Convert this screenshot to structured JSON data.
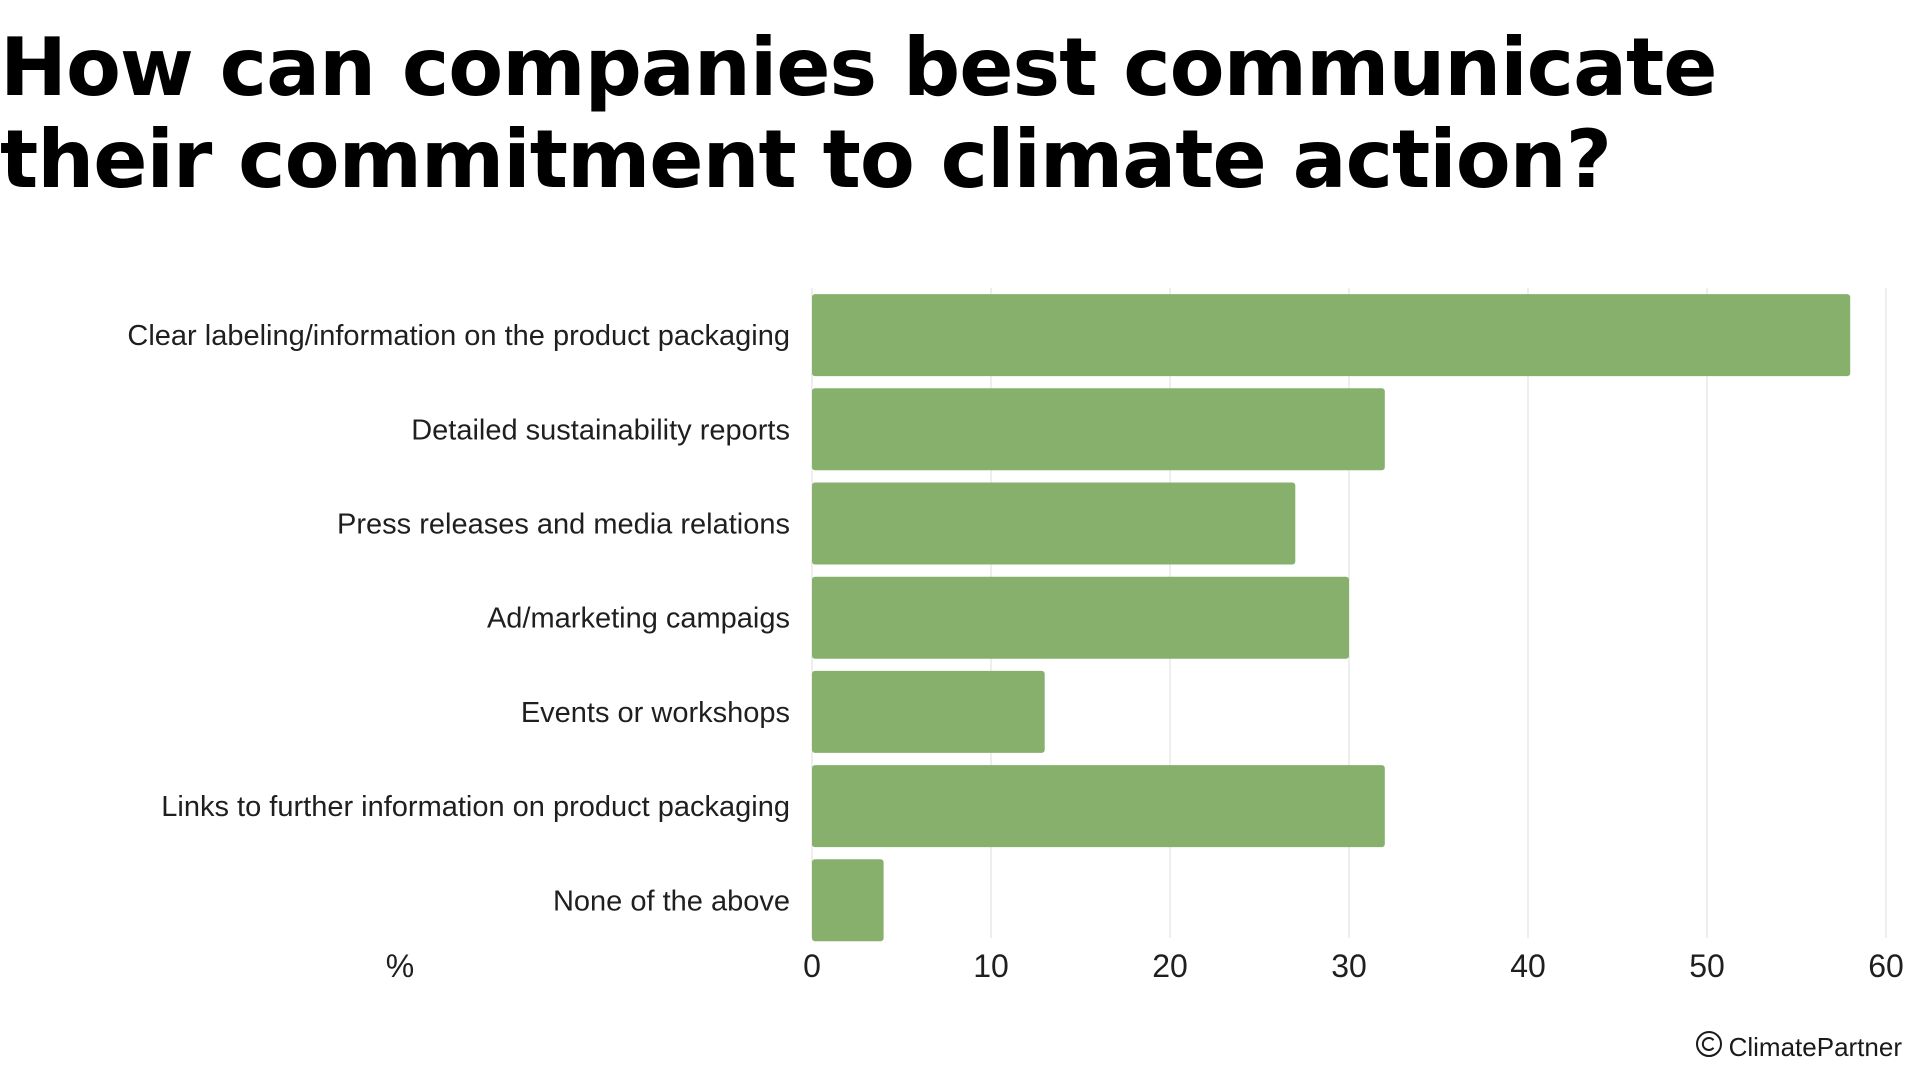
{
  "title": "How can companies best communicate their commitment to climate action?",
  "chart_data": {
    "type": "bar",
    "orientation": "horizontal",
    "categories": [
      "Clear labeling/information on the product packaging",
      "Detailed sustainability reports",
      "Press releases and media relations",
      "Ad/marketing campaigs",
      "Events or workshops",
      "Links to further information on product packaging",
      "None of the above"
    ],
    "values": [
      58,
      32,
      27,
      30,
      13,
      32,
      4
    ],
    "xlabel": "%",
    "xlim": [
      0,
      60
    ],
    "ticks": [
      "0",
      "10",
      "20",
      "30",
      "40",
      "50",
      "60"
    ],
    "grid": true,
    "bar_color": "#86b06c",
    "grid_color": "#dddddd"
  },
  "credit": {
    "icon": "copyright-icon",
    "text": "ClimatePartner"
  }
}
